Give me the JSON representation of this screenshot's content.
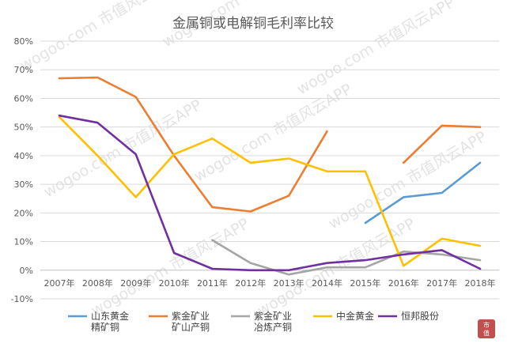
{
  "watermark": "wogoo.com   市值风云APP",
  "chart_data": {
    "type": "line",
    "title": "金属铜或电解铜毛利率比较",
    "categories": [
      "2007年",
      "2008年",
      "2009年",
      "2010年",
      "2011年",
      "2012年",
      "2013年",
      "2014年",
      "2015年",
      "2016年",
      "2017年",
      "2018年"
    ],
    "y_ticks": [
      "80%",
      "70%",
      "60%",
      "50%",
      "40%",
      "30%",
      "20%",
      "10%",
      "0%",
      "-10%"
    ],
    "ylim": [
      -10,
      80
    ],
    "grid": true,
    "legend_position": "bottom",
    "series": [
      {
        "name": "山东黄金精矿铜",
        "legend_lines": [
          "山东黄金",
          "精矿铜"
        ],
        "color": "#5b9bd5",
        "values": [
          null,
          null,
          null,
          null,
          null,
          null,
          null,
          null,
          16.5,
          25.5,
          27,
          37.5
        ]
      },
      {
        "name": "紫金矿业矿山产铜",
        "legend_lines": [
          "紫金矿业",
          "矿山产铜"
        ],
        "color": "#ed7d31",
        "values": [
          67,
          67.3,
          60.5,
          40,
          22,
          20.5,
          26,
          48.5,
          null,
          37.5,
          50.5,
          50
        ]
      },
      {
        "name": "紫金矿业冶炼产铜",
        "legend_lines": [
          "紫金矿业",
          "冶炼产铜"
        ],
        "color": "#a5a5a5",
        "values": [
          null,
          null,
          null,
          null,
          10.5,
          2.5,
          -1.5,
          1,
          1,
          6.5,
          5.5,
          3.5
        ]
      },
      {
        "name": "中金黄金",
        "legend_lines": [
          "中金黄金"
        ],
        "color": "#ffc000",
        "values": [
          53.5,
          40,
          25.5,
          40.5,
          46,
          37.5,
          39,
          34.5,
          34.5,
          1.5,
          11,
          8.5
        ]
      },
      {
        "name": "恒邦股份",
        "legend_lines": [
          "恒邦股份"
        ],
        "color": "#7030a0",
        "values": [
          54,
          51.5,
          40.5,
          6,
          0.5,
          0,
          0,
          2.5,
          3.5,
          5.5,
          7,
          0.5
        ]
      }
    ]
  }
}
